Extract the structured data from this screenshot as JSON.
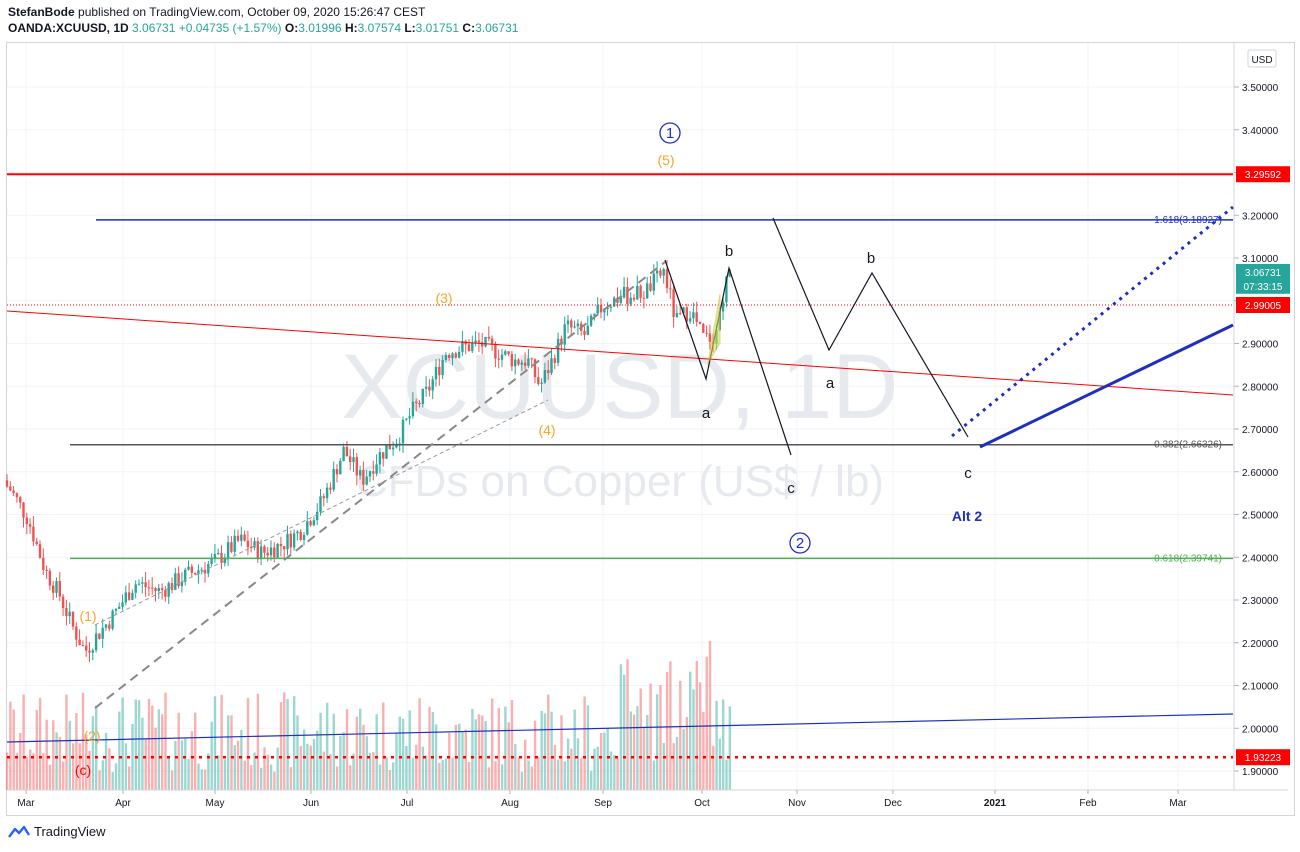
{
  "header": {
    "author": "StefanBode",
    "published_text": "published on TradingView.com, October 09, 2020 15:26:47 CEST",
    "symbol": "OANDA:XCUUSD, 1D",
    "last": "3.06731",
    "change": "+0.04735 (+1.57%)",
    "o_label": "O:",
    "o_value": "3.01996",
    "h_label": "H:",
    "h_value": "3.07574",
    "l_label": "L:",
    "l_value": "3.01751",
    "c_label": "C:",
    "c_value": "3.06731"
  },
  "watermark": {
    "symbol": "XCUUSD, 1D",
    "name": "CFDs on Copper (US$ / lb)"
  },
  "footer": {
    "brand": "TradingView"
  },
  "colors": {
    "up": "#26a69a",
    "down": "#ef5350",
    "red_line": "#ff0000",
    "blue_line": "#1e2fbf",
    "green_line": "#4caf50",
    "gray_line": "#555555",
    "orange": "#f5a623"
  },
  "chart_data": {
    "type": "candlestick",
    "currency": "USD",
    "ylim": [
      1.86,
      3.56
    ],
    "y_ticks": [
      "3.50000",
      "3.40000",
      "3.30000",
      "3.20000",
      "3.10000",
      "3.00000",
      "2.90000",
      "2.80000",
      "2.70000",
      "2.60000",
      "2.50000",
      "2.40000",
      "2.30000",
      "2.20000",
      "2.10000",
      "2.00000",
      "1.90000"
    ],
    "x_ticks": [
      "Mar",
      "Apr",
      "May",
      "Jun",
      "Jul",
      "Aug",
      "Sep",
      "Oct",
      "Nov",
      "Dec",
      "2021",
      "Feb",
      "Mar"
    ],
    "price_tags": [
      {
        "value": "3.29592",
        "level": 3.29592,
        "color": "#ff0000"
      },
      {
        "value": "3.06731",
        "level": 3.06731,
        "color": "#26a69a"
      },
      {
        "value": "07:33:15",
        "level": 3.035,
        "color": "#26a69a"
      },
      {
        "value": "2.99005",
        "level": 2.99005,
        "color": "#ff0000"
      },
      {
        "value": "1.93223",
        "level": 1.93223,
        "color": "#ff0000"
      }
    ],
    "horizontal_levels": [
      {
        "label": "1.618(3.18927)",
        "level": 3.18927,
        "color": "#1e2fbf"
      },
      {
        "label": "0.382(2.66326)",
        "level": 2.66326,
        "color": "#555555"
      },
      {
        "label": "0.618(2.39741)",
        "level": 2.39741,
        "color": "#4caf50"
      }
    ],
    "wave_labels": [
      {
        "text": "1",
        "circled": true,
        "color": "#1e2fbf"
      },
      {
        "text": "(5)",
        "color": "#f5a623"
      },
      {
        "text": "(3)",
        "color": "#f5a623"
      },
      {
        "text": "(4)",
        "color": "#f5a623"
      },
      {
        "text": "(1)",
        "color": "#f5a623"
      },
      {
        "text": "(2)",
        "color": "#f5a623"
      },
      {
        "text": "(c)",
        "color": "#ff0000"
      },
      {
        "text": "b",
        "color": "#131722"
      },
      {
        "text": "a",
        "color": "#131722"
      },
      {
        "text": "c",
        "color": "#131722"
      },
      {
        "text": "a",
        "color": "#131722"
      },
      {
        "text": "b",
        "color": "#131722"
      },
      {
        "text": "c",
        "color": "#131722"
      },
      {
        "text": "2",
        "circled": true,
        "color": "#1e2fbf"
      },
      {
        "text": "Alt 2",
        "color": "#1e2fbf"
      }
    ]
  }
}
